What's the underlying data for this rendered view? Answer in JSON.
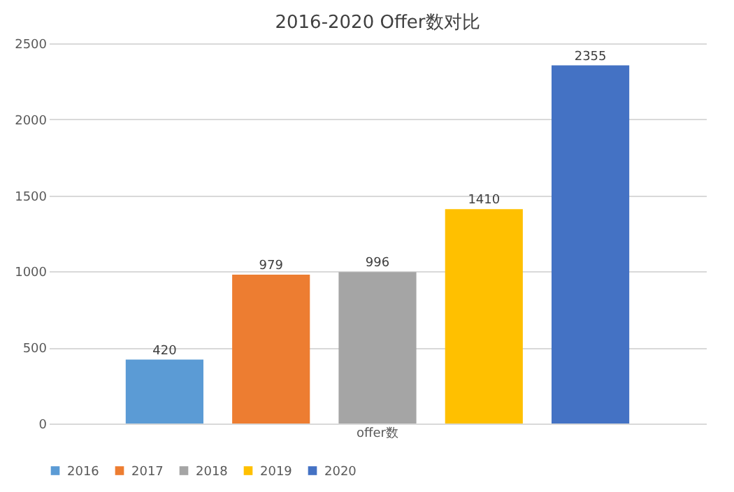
{
  "chart_data": {
    "type": "bar",
    "title": "2016-2020 Offer数对比",
    "categories": [
      "offer数"
    ],
    "series": [
      {
        "name": "2016",
        "color": "#5b9bd5",
        "values": [
          420
        ]
      },
      {
        "name": "2017",
        "color": "#ed7d31",
        "values": [
          979
        ]
      },
      {
        "name": "2018",
        "color": "#a5a5a5",
        "values": [
          996
        ]
      },
      {
        "name": "2019",
        "color": "#ffc000",
        "values": [
          1410
        ]
      },
      {
        "name": "2020",
        "color": "#4472c4",
        "values": [
          2355
        ]
      }
    ],
    "ylim": [
      0,
      2500
    ],
    "yticks": [
      0,
      500,
      1000,
      1500,
      2000,
      2500
    ],
    "grid": "y",
    "legend": "bottom",
    "data_labels": true
  }
}
